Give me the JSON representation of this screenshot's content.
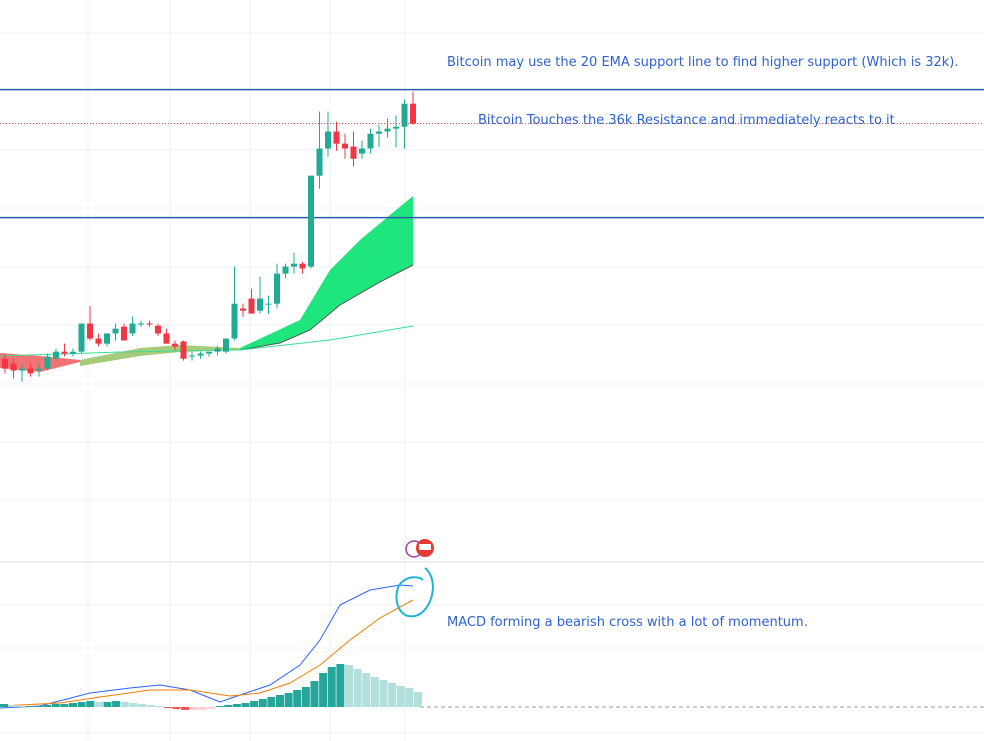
{
  "chart_data": [
    {
      "type": "candlestick",
      "candles": [
        [
          27590,
          27750,
          27130,
          27280
        ],
        [
          27440,
          27600,
          26970,
          27220
        ],
        [
          27220,
          27440,
          26870,
          27280
        ],
        [
          27280,
          27440,
          27030,
          27130
        ],
        [
          27220,
          27440,
          27030,
          27280
        ],
        [
          27280,
          27750,
          27220,
          27660
        ],
        [
          27600,
          27910,
          27530,
          27810
        ],
        [
          27810,
          28060,
          27660,
          27750
        ],
        [
          27750,
          27910,
          27660,
          27810
        ],
        [
          27810,
          28690,
          27750,
          28690
        ],
        [
          28690,
          29240,
          28160,
          28220
        ],
        [
          28220,
          28380,
          27970,
          28060
        ],
        [
          28060,
          28380,
          27970,
          28380
        ],
        [
          28380,
          28690,
          28160,
          28530
        ],
        [
          28590,
          28690,
          28160,
          28160
        ],
        [
          28380,
          28900,
          28300,
          28690
        ],
        [
          28690,
          28780,
          28590,
          28690
        ],
        [
          28690,
          28780,
          28590,
          28660
        ],
        [
          28620,
          28690,
          28300,
          28380
        ],
        [
          28380,
          28530,
          28060,
          28060
        ],
        [
          28060,
          28160,
          27850,
          27970
        ],
        [
          28130,
          28160,
          27530,
          27590
        ],
        [
          27660,
          27810,
          27530,
          27690
        ],
        [
          27690,
          27810,
          27590,
          27750
        ],
        [
          27750,
          27810,
          27660,
          27810
        ],
        [
          27810,
          28000,
          27690,
          27910
        ],
        [
          27810,
          28220,
          27750,
          28220
        ],
        [
          28220,
          30470,
          28160,
          29310
        ],
        [
          29160,
          29310,
          28900,
          29090
        ],
        [
          29470,
          29780,
          29000,
          29000
        ],
        [
          29090,
          30160,
          29000,
          29470
        ],
        [
          29310,
          29560,
          28990,
          29310
        ],
        [
          29310,
          30560,
          29160,
          30250
        ],
        [
          30250,
          30560,
          30100,
          30470
        ],
        [
          30470,
          30900,
          30250,
          30560
        ],
        [
          30560,
          30620,
          30250,
          30410
        ],
        [
          30470,
          33310,
          30410,
          33310
        ],
        [
          33310,
          35310,
          32900,
          34160
        ],
        [
          34160,
          35310,
          33900,
          34690
        ],
        [
          34690,
          35000,
          34090,
          34310
        ],
        [
          34310,
          34620,
          33840,
          34160
        ],
        [
          34220,
          34690,
          33600,
          33840
        ],
        [
          34000,
          34400,
          33840,
          34160
        ],
        [
          34160,
          34780,
          34000,
          34620
        ],
        [
          34620,
          34900,
          34200,
          34690
        ],
        [
          34690,
          35100,
          34500,
          34780
        ],
        [
          34780,
          35200,
          34200,
          34840
        ],
        [
          34840,
          35700,
          34150,
          35560
        ],
        [
          35560,
          35940,
          34900,
          34940
        ]
      ],
      "ylim": [
        26000,
        38800
      ],
      "levels": [
        36000,
        32000
      ],
      "last_price": 34940,
      "annotations": [
        "Bitcoin may use the 20 EMA support line to find higher support (Which is 32k).",
        "Bitcoin Touches the 36k Resistance and immediately reacts to it"
      ]
    },
    {
      "type": "bar",
      "values": [
        3,
        2,
        1,
        1,
        1,
        2,
        3,
        3,
        4,
        5,
        6,
        5,
        5,
        6,
        5,
        4,
        3,
        2,
        1,
        -1,
        -2,
        -3,
        -3,
        -3,
        -2,
        1,
        2,
        3,
        4,
        6,
        8,
        10,
        12,
        14,
        17,
        20,
        26,
        34,
        40,
        43,
        42,
        38,
        34,
        30,
        27,
        24,
        21,
        19,
        15
      ],
      "ylim": [
        -15,
        145
      ],
      "annotation": "MACD forming a bearish cross with a lot of momentum."
    }
  ]
}
